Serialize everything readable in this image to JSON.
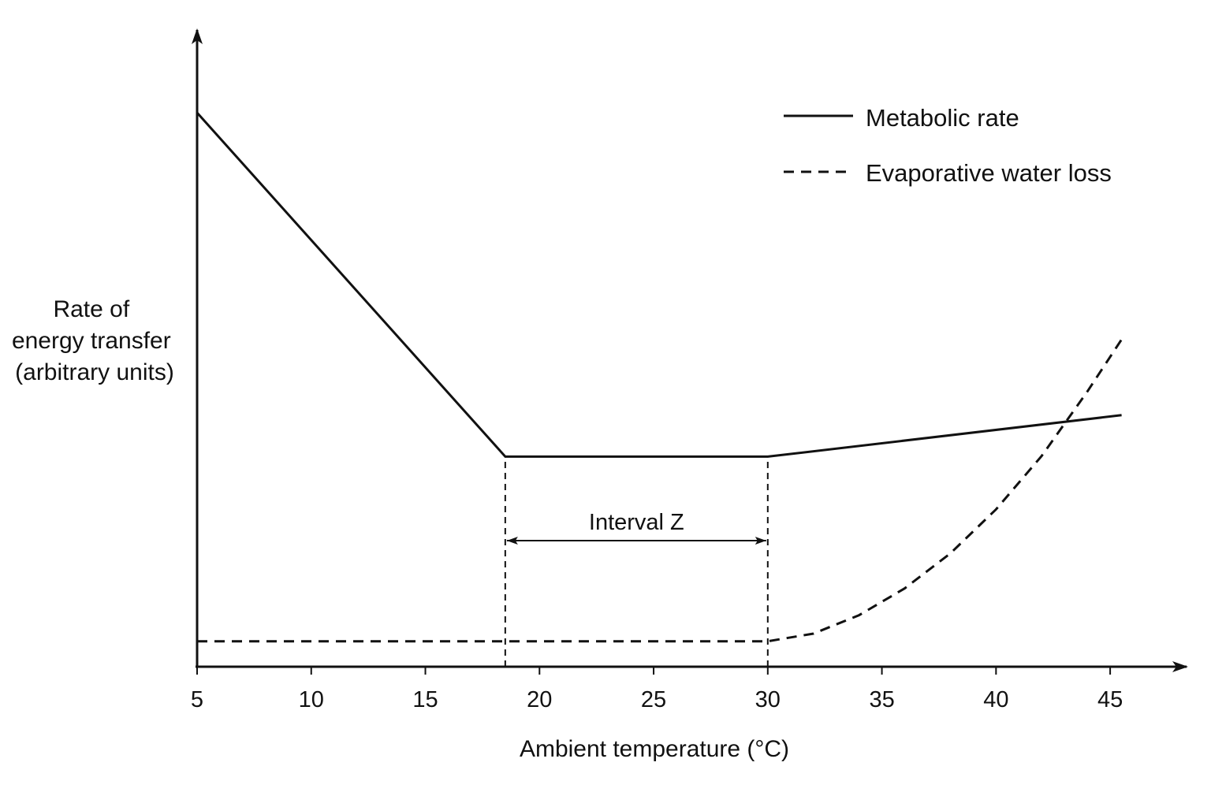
{
  "chart_data": {
    "type": "line",
    "xlabel": "Ambient temperature (°C)",
    "ylabel_lines": [
      "Rate of",
      "energy transfer",
      "(arbitrary units)"
    ],
    "xlim": [
      5,
      47
    ],
    "ylim": [
      0,
      100
    ],
    "x_ticks": [
      "5",
      "10",
      "15",
      "20",
      "25",
      "30",
      "35",
      "40",
      "45"
    ],
    "grid": false,
    "legend_position": "top-right",
    "colors": {
      "line": "#111111",
      "background": "#ffffff"
    },
    "series": [
      {
        "name": "Metabolic rate",
        "style": "solid",
        "points": [
          [
            5,
            87
          ],
          [
            18.5,
            33
          ],
          [
            30,
            33
          ],
          [
            45.5,
            39.5
          ]
        ]
      },
      {
        "name": "Evaporative water loss",
        "style": "dashed",
        "points": [
          [
            5,
            4
          ],
          [
            18.5,
            4
          ],
          [
            30,
            4
          ],
          [
            32,
            5.2
          ],
          [
            34,
            8.1
          ],
          [
            36,
            12.3
          ],
          [
            38,
            17.8
          ],
          [
            40,
            24.7
          ],
          [
            42,
            33.1
          ],
          [
            44,
            43.2
          ],
          [
            45.5,
            51.4
          ]
        ]
      }
    ],
    "reference_lines": [
      {
        "x": 18.5,
        "y_from": 0,
        "y_to": 33,
        "style": "dashed"
      },
      {
        "x": 30,
        "y_from": 0,
        "y_to": 33,
        "style": "dashed"
      }
    ],
    "annotations": [
      {
        "label": "Interval Z",
        "x_from": 18.5,
        "x_to": 30,
        "y": 19.8,
        "type": "double-arrow"
      }
    ]
  }
}
